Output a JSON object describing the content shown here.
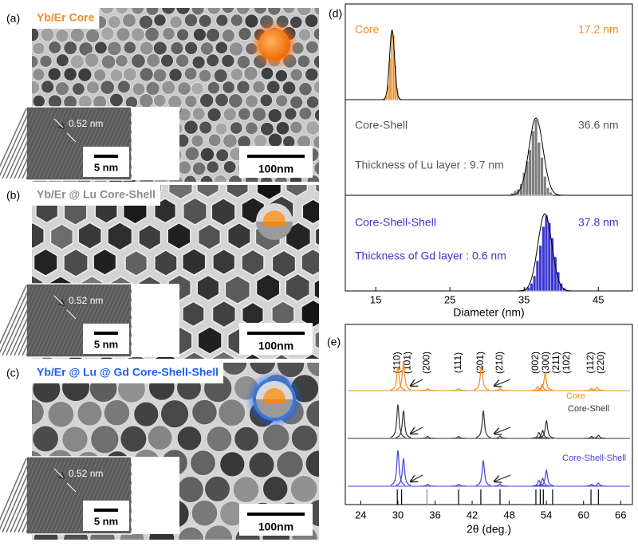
{
  "panels": [
    {
      "label": "(a)",
      "title": "Yb/Er Core",
      "lattice": "0.52 nm",
      "inset_scale": "5 nm",
      "scale": "100nm"
    },
    {
      "label": "(b)",
      "title": "Yb/Er @ Lu Core-Shell",
      "lattice": "0.52 nm",
      "inset_scale": "5 nm",
      "scale": "100nm"
    },
    {
      "label": "(c)",
      "title": "Yb/Er @ Lu @ Gd Core-Shell-Shell",
      "lattice": "0.52 nm",
      "inset_scale": "5 nm",
      "scale": "100nm"
    }
  ],
  "chart_d": {
    "type": "histogram",
    "label": "(d)",
    "xlabel": "Diameter (nm)",
    "xlim": [
      10.9,
      49.6
    ],
    "xticks": [
      15,
      25,
      35,
      45
    ],
    "histograms": [
      {
        "name": "Core",
        "color": "#f28a1e",
        "mean": {
          "value": 17.2,
          "label": "17.2 nm"
        },
        "ylim": [
          0,
          100
        ],
        "bins": [
          16.3,
          16.55,
          16.8,
          17.05,
          17.3,
          17.55,
          17.8,
          18.05,
          18.3
        ],
        "counts": [
          5,
          20,
          55,
          90,
          85,
          45,
          15,
          4
        ]
      },
      {
        "name": "Core-Shell",
        "color": "#7f7f7f",
        "mean": {
          "value": 36.6,
          "label": "36.6 nm"
        },
        "note": "Thickness of Lu layer : 9.7 nm",
        "ylim": [
          0,
          100
        ],
        "bins": [
          33.2,
          33.6,
          34.0,
          34.4,
          34.8,
          35.2,
          35.6,
          36.0,
          36.4,
          36.8,
          37.2,
          37.6,
          38.0,
          38.4,
          38.8
        ],
        "counts": [
          3,
          6,
          8,
          15,
          30,
          45,
          60,
          85,
          100,
          70,
          50,
          25,
          10,
          4
        ]
      },
      {
        "name": "Core-Shell-Shell",
        "color": "#3b36d0",
        "mean": {
          "value": 37.8,
          "label": "37.8 nm"
        },
        "note": "Thickness of Gd layer : 0.6 nm",
        "ylim": [
          0,
          100
        ],
        "bins": [
          35.0,
          35.4,
          35.8,
          36.2,
          36.6,
          37.0,
          37.4,
          37.8,
          38.2,
          38.6,
          39.0,
          39.4,
          39.8,
          40.2,
          40.6
        ],
        "counts": [
          3,
          5,
          10,
          20,
          40,
          60,
          85,
          100,
          90,
          70,
          45,
          25,
          10,
          4
        ]
      }
    ]
  },
  "chart_e": {
    "type": "xrd",
    "label": "(e)",
    "xlabel": "2θ (deg.)",
    "xlim": [
      21.5,
      67.9
    ],
    "xticks": [
      24,
      30,
      36,
      42,
      48,
      54,
      60,
      66
    ],
    "reflections": [
      {
        "label": "(110)",
        "pos": 29.9
      },
      {
        "label": "(101)",
        "pos": 30.6
      },
      {
        "label": "(200)",
        "pos": 34.7
      },
      {
        "label": "(111)",
        "pos": 39.8
      },
      {
        "label": "(201)",
        "pos": 43.4
      },
      {
        "label": "(210)",
        "pos": 46.5
      },
      {
        "label": "(002)",
        "pos": 52.3
      },
      {
        "label": "(300)",
        "pos": 53.0
      },
      {
        "label": "(211)",
        "pos": 53.5
      },
      {
        "label": "(102)",
        "pos": 55.0
      },
      {
        "label": "(112)",
        "pos": 61.2
      },
      {
        "label": "(220)",
        "pos": 62.4
      }
    ],
    "series": [
      {
        "name": "Core",
        "color": "#f28a1e",
        "peaks": [
          [
            30.0,
            0.6
          ],
          [
            30.9,
            0.75
          ],
          [
            34.8,
            0.05
          ],
          [
            39.8,
            0.05
          ],
          [
            43.5,
            0.65
          ],
          [
            46.5,
            0.05
          ],
          [
            52.6,
            0.1
          ],
          [
            53.3,
            0.15
          ],
          [
            53.8,
            0.45
          ],
          [
            61.3,
            0.05
          ],
          [
            62.2,
            0.08
          ]
        ]
      },
      {
        "name": "Core-Shell",
        "color": "#333333",
        "peaks": [
          [
            30.0,
            0.85
          ],
          [
            30.9,
            0.7
          ],
          [
            34.8,
            0.05
          ],
          [
            39.8,
            0.05
          ],
          [
            43.8,
            0.7
          ],
          [
            46.5,
            0.06
          ],
          [
            52.8,
            0.15
          ],
          [
            53.4,
            0.2
          ],
          [
            54.0,
            0.45
          ],
          [
            61.3,
            0.05
          ],
          [
            62.4,
            0.08
          ]
        ]
      },
      {
        "name": "Core-Shell-Shell",
        "color": "#4040d8",
        "peaks": [
          [
            30.0,
            0.9
          ],
          [
            30.9,
            0.7
          ],
          [
            34.8,
            0.05
          ],
          [
            39.8,
            0.05
          ],
          [
            43.8,
            0.65
          ],
          [
            46.5,
            0.06
          ],
          [
            52.8,
            0.15
          ],
          [
            53.4,
            0.2
          ],
          [
            54.0,
            0.4
          ],
          [
            61.3,
            0.05
          ],
          [
            62.4,
            0.08
          ]
        ]
      }
    ]
  }
}
